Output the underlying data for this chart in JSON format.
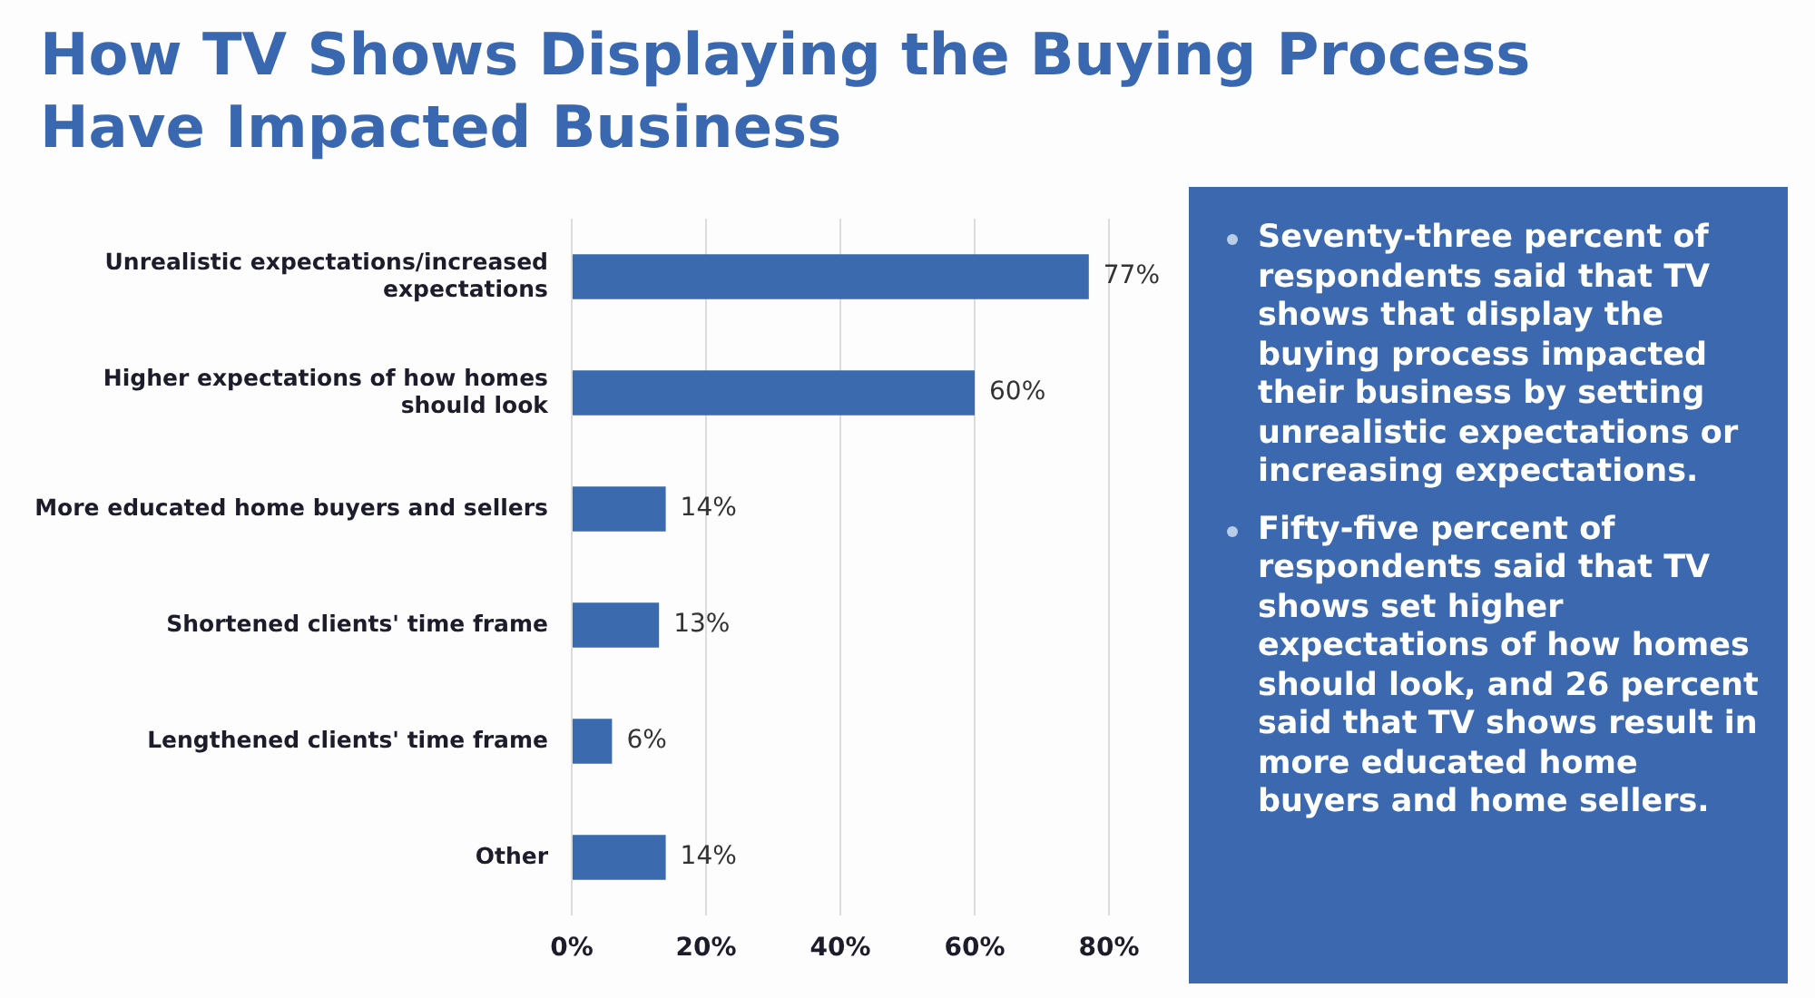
{
  "chart_data": {
    "type": "bar",
    "orientation": "horizontal",
    "title": "How TV Shows Displaying the Buying Process Have Impacted Business",
    "categories": [
      "Unrealistic expectations/increased expectations",
      "Higher expectations of how homes should look",
      "More educated home buyers and sellers",
      "Shortened clients' time frame",
      "Lengthened clients' time frame",
      "Other"
    ],
    "values": [
      77,
      60,
      14,
      13,
      6,
      14
    ],
    "value_labels": [
      "77%",
      "60%",
      "14%",
      "13%",
      "6%",
      "14%"
    ],
    "color": "#3b6aae",
    "xlim": [
      0,
      80
    ],
    "xticks": [
      {
        "value": 0,
        "label": "0%"
      },
      {
        "value": 20,
        "label": "20%"
      },
      {
        "value": 40,
        "label": "40%"
      },
      {
        "value": 60,
        "label": "60%"
      },
      {
        "value": 80,
        "label": "80%"
      }
    ],
    "grid": "x",
    "annotations": [
      "Seventy-three percent of respondents said that TV shows that display the buying process impacted their business by setting unrealistic expectations or increasing expectations.",
      "Fifty-five percent of respondents said that TV shows set higher expectations of how homes should look, and 26 percent said that TV shows result in more educated home buyers and home sellers."
    ]
  }
}
